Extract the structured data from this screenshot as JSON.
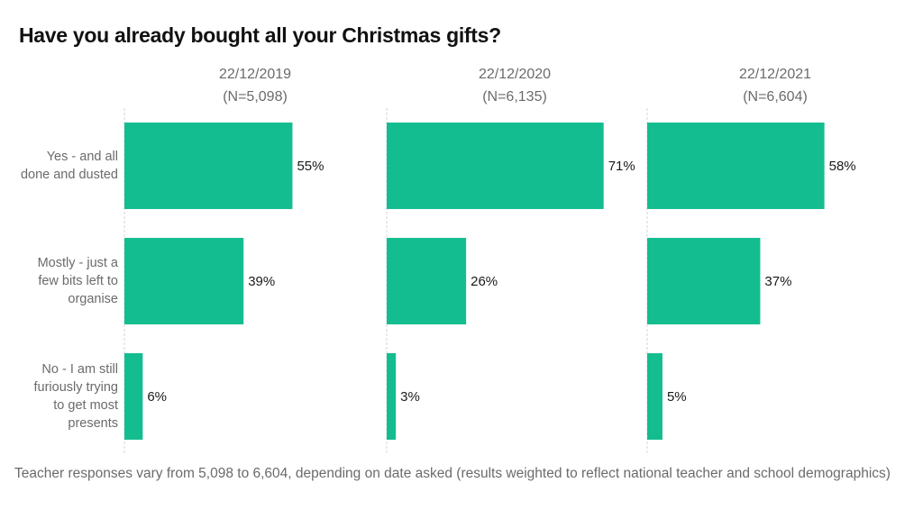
{
  "chart_data": {
    "type": "bar",
    "orientation": "horizontal",
    "title": "Have you already bought all your Christmas gifts?",
    "categories": [
      [
        "Yes - and all",
        "done and dusted"
      ],
      [
        "Mostly - just a",
        "few bits left to",
        "organise"
      ],
      [
        "No - I am still",
        "furiously trying",
        "to get most",
        "presents"
      ]
    ],
    "series": [
      {
        "name": "22/12/2019",
        "sample": "(N=5,098)",
        "values": [
          55,
          39,
          6
        ],
        "labels": [
          "55%",
          "39%",
          "6%"
        ]
      },
      {
        "name": "22/12/2020",
        "sample": "(N=6,135)",
        "values": [
          71,
          26,
          3
        ],
        "labels": [
          "71%",
          "26%",
          "3%"
        ]
      },
      {
        "name": "22/12/2021",
        "sample": "(N=6,604)",
        "values": [
          58,
          37,
          5
        ],
        "labels": [
          "58%",
          "37%",
          "5%"
        ]
      }
    ],
    "xlim": [
      0,
      100
    ],
    "unit": "%",
    "grid": false,
    "bar_color": "#14BD8F",
    "footnote": "Teacher responses vary from 5,098 to 6,604, depending on date asked (results weighted to reflect national teacher and school demographics)"
  }
}
